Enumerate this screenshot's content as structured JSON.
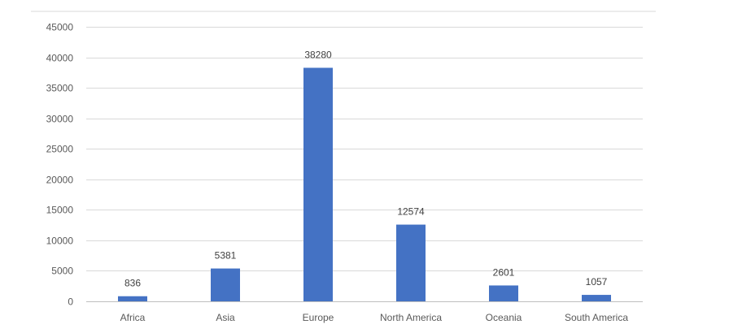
{
  "chart_data": {
    "type": "bar",
    "title": "",
    "xlabel": "",
    "ylabel": "",
    "categories": [
      "Africa",
      "Asia",
      "Europe",
      "North America",
      "Oceania",
      "South America"
    ],
    "values": [
      836,
      5381,
      38280,
      12574,
      2601,
      1057
    ],
    "data_labels": [
      "836",
      "5381",
      "38280",
      "12574",
      "2601",
      "1057"
    ],
    "ylim": [
      0,
      45000
    ],
    "yticks": [
      0,
      5000,
      10000,
      15000,
      20000,
      25000,
      30000,
      35000,
      40000,
      45000
    ],
    "ytick_labels": [
      "0",
      "5000",
      "10000",
      "15000",
      "20000",
      "25000",
      "30000",
      "35000",
      "40000",
      "45000"
    ],
    "grid": true,
    "legend": "none",
    "bar_color": "#4472C4",
    "grid_color": "#D9D9D9",
    "axis_line_color": "#BFBFBF",
    "tick_label_color": "#595959",
    "data_label_color": "#404040"
  }
}
